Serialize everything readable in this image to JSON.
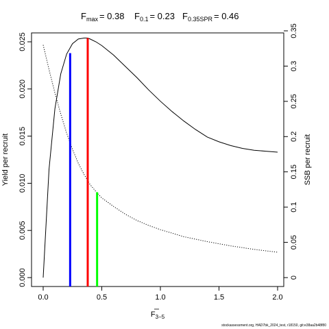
{
  "chart_data": {
    "type": "line",
    "title": {
      "fmax_label": "F",
      "fmax_sub": "max",
      "fmax_value": "= 0.38",
      "f01_label": "F",
      "f01_sub": "0.1",
      "f01_value": "= 0.23",
      "fspr_label": "F",
      "fspr_sub": "0.35SPR",
      "fspr_value": "= 0.46"
    },
    "xlabel": "F",
    "xlabel_sub": "3−5",
    "ylabel_left": "Yield per recruit",
    "ylabel_right": "SSB per recruit",
    "xlim": [
      0,
      2.0
    ],
    "ylim_left": [
      0,
      0.0255
    ],
    "ylim_right": [
      0,
      0.35
    ],
    "x_ticks": [
      {
        "value": 0.0,
        "label": "0.0"
      },
      {
        "value": 0.5,
        "label": "0.5"
      },
      {
        "value": 1.0,
        "label": "1.0"
      },
      {
        "value": 1.5,
        "label": "1.5"
      },
      {
        "value": 2.0,
        "label": "2.0"
      }
    ],
    "y_ticks_left": [
      {
        "value": 0.0,
        "label": "0.000"
      },
      {
        "value": 0.005,
        "label": "0.005"
      },
      {
        "value": 0.01,
        "label": "0.010"
      },
      {
        "value": 0.015,
        "label": "0.015"
      },
      {
        "value": 0.02,
        "label": "0.020"
      },
      {
        "value": 0.025,
        "label": "0.025"
      }
    ],
    "y_ticks_right": [
      {
        "value": 0.0,
        "label": "0"
      },
      {
        "value": 0.05,
        "label": "0.05"
      },
      {
        "value": 0.1,
        "label": "0.1"
      },
      {
        "value": 0.15,
        "label": "0.15"
      },
      {
        "value": 0.2,
        "label": "0.2"
      },
      {
        "value": 0.25,
        "label": "0.25"
      },
      {
        "value": 0.3,
        "label": "0.3"
      },
      {
        "value": 0.35,
        "label": "0.35"
      }
    ],
    "series": [
      {
        "axis": "left",
        "style": "solid",
        "color": "#000000",
        "x": [
          0,
          0.05,
          0.1,
          0.15,
          0.2,
          0.25,
          0.3,
          0.35,
          0.38,
          0.4,
          0.45,
          0.5,
          0.6,
          0.7,
          0.8,
          0.9,
          1.0,
          1.1,
          1.2,
          1.3,
          1.4,
          1.5,
          1.6,
          1.7,
          1.8,
          1.9,
          2.0
        ],
        "values": [
          0.0,
          0.0115,
          0.0179,
          0.0216,
          0.0237,
          0.0248,
          0.0253,
          0.0254,
          0.0254,
          0.0253,
          0.025,
          0.0246,
          0.0236,
          0.0224,
          0.0212,
          0.0199,
          0.0187,
          0.0176,
          0.0166,
          0.0157,
          0.0149,
          0.0144,
          0.014,
          0.0137,
          0.0135,
          0.0134,
          0.0133
        ]
      },
      {
        "axis": "right",
        "style": "dotted",
        "color": "#000000",
        "x": [
          0,
          0.05,
          0.1,
          0.15,
          0.2,
          0.25,
          0.3,
          0.35,
          0.4,
          0.46,
          0.5,
          0.6,
          0.7,
          0.8,
          0.9,
          1.0,
          1.2,
          1.4,
          1.6,
          1.8,
          2.0
        ],
        "values": [
          0.33,
          0.295,
          0.262,
          0.232,
          0.205,
          0.182,
          0.162,
          0.146,
          0.132,
          0.12,
          0.113,
          0.101,
          0.09,
          0.081,
          0.074,
          0.068,
          0.058,
          0.051,
          0.045,
          0.04,
          0.036
        ]
      }
    ],
    "reference_lines": [
      {
        "name": "F0.1",
        "x": 0.23,
        "y_top": 0.0238,
        "axis": "left",
        "color": "#0000ff"
      },
      {
        "name": "Fmax",
        "x": 0.38,
        "y_top": 0.0254,
        "axis": "left",
        "color": "#ff0000"
      },
      {
        "name": "F0.35SPR",
        "x": 0.46,
        "y_top": 0.121,
        "axis": "right",
        "color": "#00ff00"
      }
    ],
    "footer": "stockassessment.org, HAD7bk_2024_test, r18150, git:e38aa2b48f80"
  }
}
